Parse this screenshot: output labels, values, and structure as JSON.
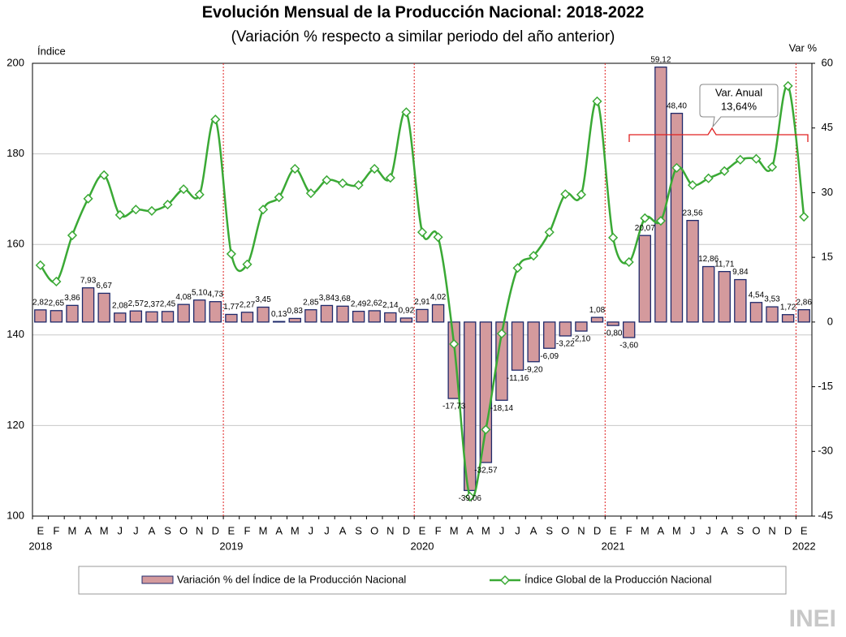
{
  "chart_data": {
    "type": "combo",
    "title": "Evolución Mensual de la Producción Nacional: 2018-2022",
    "subtitle": "(Variación % respecto a similar periodo del año anterior)",
    "y_label": "Índice",
    "y2_label": "Var %",
    "categories": [
      "E",
      "F",
      "M",
      "A",
      "M",
      "J",
      "J",
      "A",
      "S",
      "O",
      "N",
      "D",
      "E",
      "F",
      "M",
      "A",
      "M",
      "J",
      "J",
      "A",
      "S",
      "O",
      "N",
      "D",
      "E",
      "F",
      "M",
      "A",
      "M",
      "J",
      "J",
      "A",
      "S",
      "O",
      "N",
      "D",
      "E",
      "F",
      "M",
      "A",
      "M",
      "J",
      "J",
      "A",
      "S",
      "O",
      "N",
      "D",
      "E"
    ],
    "years": [
      "2018",
      null,
      null,
      null,
      null,
      null,
      null,
      null,
      null,
      null,
      null,
      null,
      "2019",
      null,
      null,
      null,
      null,
      null,
      null,
      null,
      null,
      null,
      null,
      null,
      "2020",
      null,
      null,
      null,
      null,
      null,
      null,
      null,
      null,
      null,
      null,
      null,
      "2021",
      null,
      null,
      null,
      null,
      null,
      null,
      null,
      null,
      null,
      null,
      null,
      "2022"
    ],
    "ylim": [
      100,
      200
    ],
    "yticks": [
      100,
      120,
      140,
      160,
      180,
      200
    ],
    "y2lim": [
      -45,
      60
    ],
    "y2ticks": [
      -45,
      -30,
      -15,
      0,
      15,
      30,
      45,
      60
    ],
    "grid": true,
    "series": [
      {
        "name": "Variación % del Índice de la Producción Nacional",
        "type": "bar",
        "axis": "y2",
        "color": "#d49a9d",
        "values": [
          2.82,
          2.65,
          3.86,
          7.93,
          6.67,
          2.08,
          2.57,
          2.37,
          2.45,
          4.08,
          5.1,
          4.73,
          1.77,
          2.27,
          3.45,
          0.13,
          0.83,
          2.85,
          3.84,
          3.68,
          2.49,
          2.62,
          2.14,
          0.92,
          2.91,
          4.02,
          -17.73,
          -39.06,
          -32.57,
          -18.14,
          -11.16,
          -9.2,
          -6.09,
          -3.22,
          -2.1,
          1.08,
          -0.8,
          -3.6,
          20.07,
          59.12,
          48.4,
          23.56,
          12.86,
          11.71,
          9.84,
          4.54,
          3.53,
          1.72,
          2.86
        ],
        "value_labels": [
          "2,82",
          "2,65",
          "3,86",
          "7,93",
          "6,67",
          "2,08",
          "2,57",
          "2,37",
          "2,45",
          "4,08",
          "5,10",
          "4,73",
          "1,77",
          "2,27",
          "3,45",
          "0,13",
          "0,83",
          "2,85",
          "3,84",
          "3,68",
          "2,49",
          "2,62",
          "2,14",
          "0,92",
          "2,91",
          "4,02",
          "-17,73",
          "-39,06",
          "-32,57",
          "-18,14",
          "-11,16",
          "-9,20",
          "-6,09",
          "-3,22",
          "-2,10",
          "1,08",
          "-0,80",
          "-3,60",
          "20,07",
          "59,12",
          "48,40",
          "23,56",
          "12,86",
          "11,71",
          "9,84",
          "4,54",
          "3,53",
          "1,72",
          "2,86"
        ]
      },
      {
        "name": "Índice Global de la Producción Nacional",
        "type": "line",
        "axis": "y",
        "color": "#3aa935",
        "values": [
          155.4,
          151.8,
          162.0,
          170.1,
          175.3,
          166.5,
          167.7,
          167.4,
          168.8,
          172.2,
          171.0,
          187.6,
          157.9,
          155.6,
          167.7,
          170.4,
          176.7,
          171.3,
          174.2,
          173.5,
          173.1,
          176.7,
          174.7,
          189.2,
          162.7,
          161.6,
          138.0,
          104.3,
          119.1,
          140.3,
          154.8,
          157.5,
          162.7,
          171.1,
          171.0,
          191.6,
          161.5,
          156.1,
          165.8,
          165.2,
          176.9,
          173.1,
          174.6,
          176.2,
          178.7,
          178.9,
          177.1,
          195.0,
          166.1
        ]
      }
    ],
    "annotation": [
      "Var. Anual",
      "13,64%"
    ],
    "logo": "INEI"
  }
}
